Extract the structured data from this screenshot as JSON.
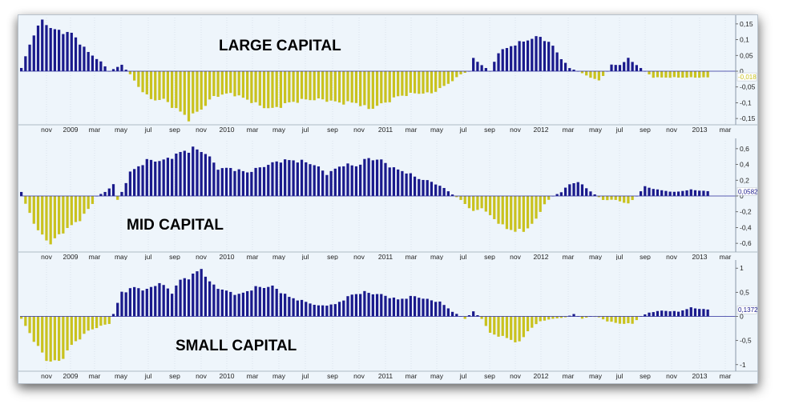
{
  "colors": {
    "positive": "#1a1a8c",
    "negative": "#c9c21e",
    "background": "#eef5fb",
    "grid": "#c7d3df",
    "zero_line": "#2a2a9a"
  },
  "x_labels": [
    "nov",
    "2009",
    "mar",
    "may",
    "jul",
    "sep",
    "nov",
    "2010",
    "mar",
    "may",
    "jul",
    "sep",
    "nov",
    "2011",
    "mar",
    "may",
    "jul",
    "sep",
    "nov",
    "2012",
    "mar",
    "may",
    "jul",
    "sep",
    "nov",
    "2013",
    "mar"
  ],
  "chart_data": [
    {
      "type": "bar",
      "title": "LARGE CAPITAL",
      "ylim": [
        -0.17,
        0.17
      ],
      "y_ticks": [
        "0,15",
        "0,1",
        "0,05",
        "0",
        "-0,05",
        "-0,1",
        "-0,15"
      ],
      "y_tick_values": [
        0.15,
        0.1,
        0.05,
        0,
        -0.05,
        -0.1,
        -0.15
      ],
      "current_value": "-0,018",
      "current_value_numeric": -0.018,
      "value_color": "#c9c21e",
      "anchors": [
        [
          0,
          0.01
        ],
        [
          3,
          0.12
        ],
        [
          5,
          0.16
        ],
        [
          8,
          0.13
        ],
        [
          12,
          0.12
        ],
        [
          16,
          0.06
        ],
        [
          19,
          0.03
        ],
        [
          21,
          0.0
        ],
        [
          24,
          0.02
        ],
        [
          26,
          -0.01
        ],
        [
          28,
          -0.05
        ],
        [
          31,
          -0.09
        ],
        [
          34,
          -0.09
        ],
        [
          37,
          -0.12
        ],
        [
          40,
          -0.15
        ],
        [
          43,
          -0.12
        ],
        [
          46,
          -0.08
        ],
        [
          50,
          -0.07
        ],
        [
          54,
          -0.09
        ],
        [
          57,
          -0.11
        ],
        [
          60,
          -0.12
        ],
        [
          64,
          -0.1
        ],
        [
          68,
          -0.09
        ],
        [
          72,
          -0.09
        ],
        [
          76,
          -0.1
        ],
        [
          80,
          -0.1
        ],
        [
          83,
          -0.12
        ],
        [
          87,
          -0.1
        ],
        [
          90,
          -0.08
        ],
        [
          94,
          -0.07
        ],
        [
          98,
          -0.07
        ],
        [
          102,
          -0.04
        ],
        [
          105,
          -0.01
        ],
        [
          107,
          0.0
        ],
        [
          108,
          0.04
        ],
        [
          110,
          0.02
        ],
        [
          112,
          0.0
        ],
        [
          114,
          0.06
        ],
        [
          117,
          0.08
        ],
        [
          121,
          0.1
        ],
        [
          124,
          0.11
        ],
        [
          127,
          0.08
        ],
        [
          129,
          0.04
        ],
        [
          131,
          0.01
        ],
        [
          133,
          0.0
        ],
        [
          136,
          -0.02
        ],
        [
          138,
          -0.03
        ],
        [
          140,
          0.0
        ],
        [
          141,
          0.02
        ],
        [
          143,
          0.02
        ],
        [
          145,
          0.04
        ],
        [
          147,
          0.02
        ],
        [
          149,
          0.0
        ],
        [
          151,
          -0.02
        ],
        [
          155,
          -0.02
        ],
        [
          160,
          -0.02
        ],
        [
          164,
          -0.02
        ]
      ]
    },
    {
      "type": "bar",
      "title": "MID CAPITAL",
      "ylim": [
        -0.7,
        0.7
      ],
      "y_ticks": [
        "0,6",
        "0,4",
        "0,2",
        "0",
        "-0,2",
        "-0,4",
        "-0,6"
      ],
      "y_tick_values": [
        0.6,
        0.4,
        0.2,
        0,
        -0.2,
        -0.4,
        -0.6
      ],
      "current_value": "0,0582",
      "current_value_numeric": 0.0582,
      "value_color": "#1a1a8c",
      "anchors": [
        [
          0,
          0.05
        ],
        [
          1,
          -0.1
        ],
        [
          4,
          -0.45
        ],
        [
          7,
          -0.6
        ],
        [
          10,
          -0.45
        ],
        [
          14,
          -0.3
        ],
        [
          17,
          -0.1
        ],
        [
          18,
          0.0
        ],
        [
          20,
          0.05
        ],
        [
          22,
          0.15
        ],
        [
          23,
          -0.05
        ],
        [
          24,
          0.05
        ],
        [
          26,
          0.3
        ],
        [
          30,
          0.45
        ],
        [
          34,
          0.45
        ],
        [
          38,
          0.55
        ],
        [
          41,
          0.6
        ],
        [
          44,
          0.55
        ],
        [
          47,
          0.35
        ],
        [
          50,
          0.35
        ],
        [
          54,
          0.3
        ],
        [
          58,
          0.38
        ],
        [
          62,
          0.45
        ],
        [
          66,
          0.45
        ],
        [
          70,
          0.4
        ],
        [
          73,
          0.28
        ],
        [
          77,
          0.4
        ],
        [
          80,
          0.38
        ],
        [
          83,
          0.48
        ],
        [
          86,
          0.45
        ],
        [
          89,
          0.35
        ],
        [
          92,
          0.3
        ],
        [
          95,
          0.22
        ],
        [
          98,
          0.18
        ],
        [
          101,
          0.1
        ],
        [
          103,
          0.02
        ],
        [
          105,
          -0.05
        ],
        [
          108,
          -0.2
        ],
        [
          110,
          -0.15
        ],
        [
          112,
          -0.25
        ],
        [
          116,
          -0.42
        ],
        [
          120,
          -0.45
        ],
        [
          123,
          -0.3
        ],
        [
          125,
          -0.1
        ],
        [
          127,
          0.0
        ],
        [
          129,
          0.05
        ],
        [
          131,
          0.15
        ],
        [
          133,
          0.18
        ],
        [
          135,
          0.1
        ],
        [
          137,
          0.02
        ],
        [
          139,
          -0.05
        ],
        [
          142,
          -0.05
        ],
        [
          145,
          -0.1
        ],
        [
          147,
          0.0
        ],
        [
          149,
          0.12
        ],
        [
          152,
          0.08
        ],
        [
          156,
          0.05
        ],
        [
          160,
          0.08
        ],
        [
          164,
          0.06
        ]
      ]
    },
    {
      "type": "bar",
      "title": "SMALL CAPITAL",
      "ylim": [
        -1.12,
        1.12
      ],
      "y_ticks": [
        "1",
        "0,5",
        "0",
        "-0,5",
        "-1"
      ],
      "y_tick_values": [
        1,
        0.5,
        0,
        -0.5,
        -1
      ],
      "current_value": "0,1372",
      "current_value_numeric": 0.1372,
      "value_color": "#1a1a8c",
      "anchors": [
        [
          0,
          -0.05
        ],
        [
          3,
          -0.5
        ],
        [
          6,
          -0.9
        ],
        [
          9,
          -0.95
        ],
        [
          12,
          -0.6
        ],
        [
          16,
          -0.3
        ],
        [
          19,
          -0.2
        ],
        [
          21,
          -0.15
        ],
        [
          22,
          0.05
        ],
        [
          24,
          0.5
        ],
        [
          27,
          0.6
        ],
        [
          30,
          0.55
        ],
        [
          33,
          0.7
        ],
        [
          36,
          0.5
        ],
        [
          38,
          0.75
        ],
        [
          41,
          0.85
        ],
        [
          43,
          1.0
        ],
        [
          45,
          0.7
        ],
        [
          48,
          0.55
        ],
        [
          52,
          0.45
        ],
        [
          56,
          0.6
        ],
        [
          60,
          0.62
        ],
        [
          64,
          0.4
        ],
        [
          68,
          0.3
        ],
        [
          71,
          0.22
        ],
        [
          75,
          0.25
        ],
        [
          79,
          0.45
        ],
        [
          82,
          0.5
        ],
        [
          86,
          0.45
        ],
        [
          90,
          0.35
        ],
        [
          94,
          0.42
        ],
        [
          97,
          0.35
        ],
        [
          100,
          0.3
        ],
        [
          103,
          0.1
        ],
        [
          106,
          -0.05
        ],
        [
          108,
          0.1
        ],
        [
          110,
          -0.05
        ],
        [
          112,
          -0.35
        ],
        [
          116,
          -0.45
        ],
        [
          119,
          -0.55
        ],
        [
          121,
          -0.3
        ],
        [
          124,
          -0.1
        ],
        [
          127,
          -0.05
        ],
        [
          130,
          -0.02
        ],
        [
          132,
          0.05
        ],
        [
          134,
          -0.05
        ],
        [
          136,
          0.0
        ],
        [
          138,
          -0.02
        ],
        [
          140,
          -0.1
        ],
        [
          143,
          -0.15
        ],
        [
          146,
          -0.15
        ],
        [
          148,
          0.0
        ],
        [
          150,
          0.08
        ],
        [
          153,
          0.12
        ],
        [
          157,
          0.1
        ],
        [
          160,
          0.18
        ],
        [
          164,
          0.14
        ]
      ]
    }
  ]
}
